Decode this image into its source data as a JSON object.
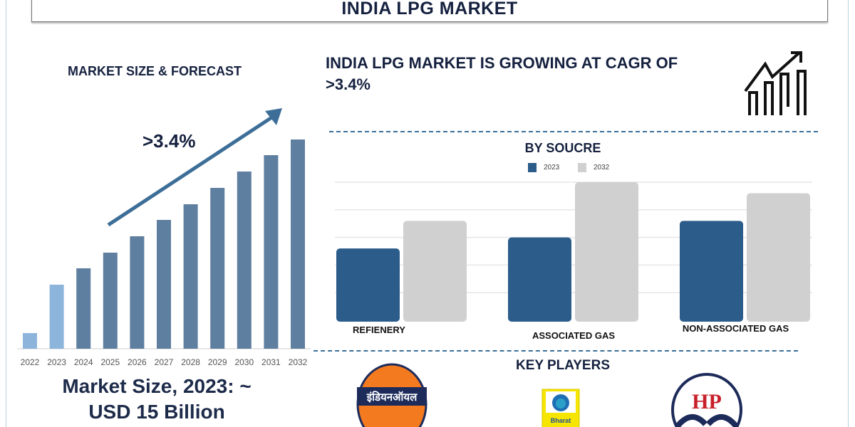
{
  "title": "INDIA LPG MARKET",
  "colors": {
    "navy_text": "#15213f",
    "bar_forecast": "#5f7fa0",
    "bar_actual": "#8db5dc",
    "series_2023": "#2b5c8a",
    "series_2032": "#d0d0d0",
    "accent_arrow": "#3d6e98"
  },
  "left_panel": {
    "heading": "MARKET SIZE & FORECAST",
    "growth_label": ">3.4%",
    "market_size_line1": "Market Size, 2023: ~",
    "market_size_line2": "USD 15 Billion"
  },
  "right_panel": {
    "headline": "INDIA LPG MARKET IS GROWING AT CAGR OF >3.4%",
    "icon": "growth-chart-arrow-icon",
    "key_players_heading": "KEY PLAYERS",
    "key_players": [
      {
        "name": "Indian Oil",
        "logo_text": "इंडियनऑयल"
      },
      {
        "name": "Bharat Petroleum",
        "logo_text": "Bharat"
      },
      {
        "name": "HP",
        "logo_text": "HP"
      }
    ]
  },
  "chart_data": [
    {
      "type": "bar",
      "title": "MARKET SIZE & FORECAST",
      "categories": [
        "2022",
        "2023",
        "2024",
        "2025",
        "2026",
        "2027",
        "2028",
        "2029",
        "2030",
        "2031",
        "2032"
      ],
      "values": [
        22,
        90,
        113,
        135,
        158,
        181,
        203,
        226,
        249,
        272,
        294
      ],
      "value_note_unit": "relative",
      "highlighted_actual": [
        "2022",
        "2023"
      ],
      "annotation": ">3.4%",
      "grid": false
    },
    {
      "type": "bar",
      "title": "BY SOUCRE",
      "categories": [
        "REFIENERY",
        "ASSOCIATED GAS",
        "NON-ASSOCIATED GAS"
      ],
      "series": [
        {
          "name": "2023",
          "values": [
            2.6,
            3.0,
            3.6
          ]
        },
        {
          "name": "2032",
          "values": [
            3.6,
            5.0,
            4.6
          ]
        }
      ],
      "ylim": [
        0,
        5
      ],
      "grid": true,
      "legend": "top"
    }
  ]
}
